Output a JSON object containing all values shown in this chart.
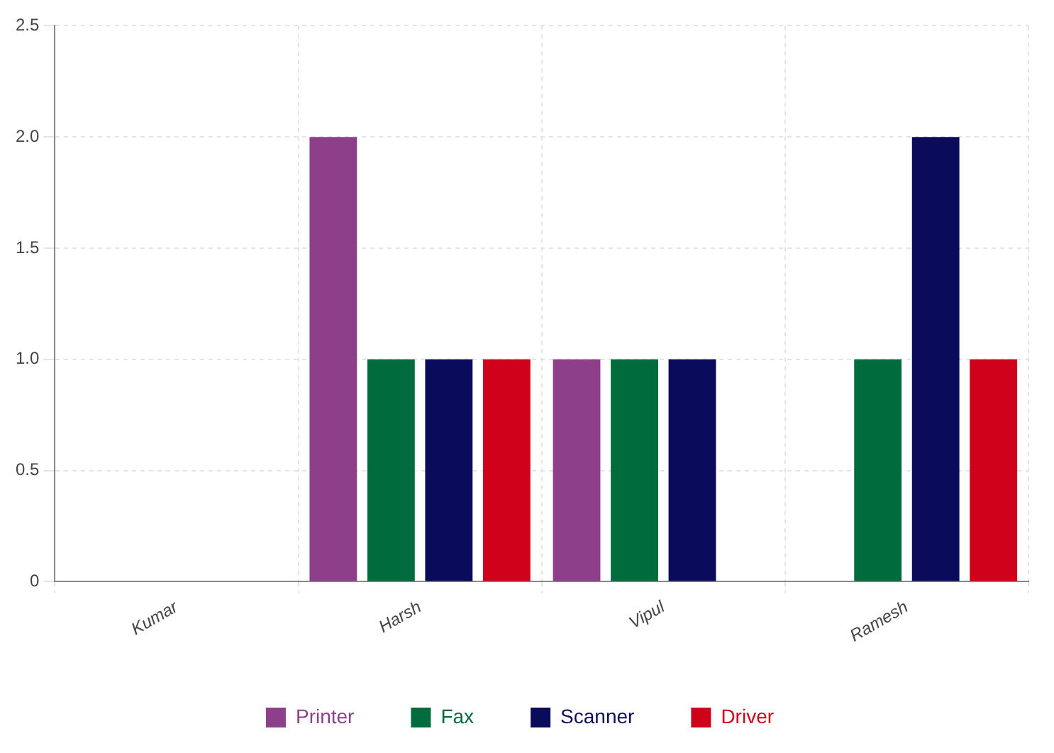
{
  "chart_data": {
    "type": "bar",
    "categories": [
      "Kumar",
      "Harsh",
      "Vipul",
      "Ramesh"
    ],
    "series": [
      {
        "name": "Printer",
        "color": "#8e3f8a",
        "values": [
          0,
          2,
          1,
          0
        ]
      },
      {
        "name": "Fax",
        "color": "#006b3c",
        "values": [
          0,
          1,
          1,
          1
        ]
      },
      {
        "name": "Scanner",
        "color": "#0b0b5c",
        "values": [
          0,
          1,
          1,
          2
        ]
      },
      {
        "name": "Driver",
        "color": "#d0021b",
        "values": [
          0,
          1,
          0,
          1
        ]
      }
    ],
    "ylim": [
      0,
      2.5
    ],
    "yticks": [
      0,
      {
        "value": 0.5,
        "label": "0.5"
      },
      {
        "value": 1,
        "label": "1.0"
      },
      {
        "value": 1.5,
        "label": "1.5"
      },
      {
        "value": 2,
        "label": "2.0"
      },
      {
        "value": 2.5,
        "label": "2.5"
      }
    ],
    "grid": true,
    "legend": "bottom"
  }
}
